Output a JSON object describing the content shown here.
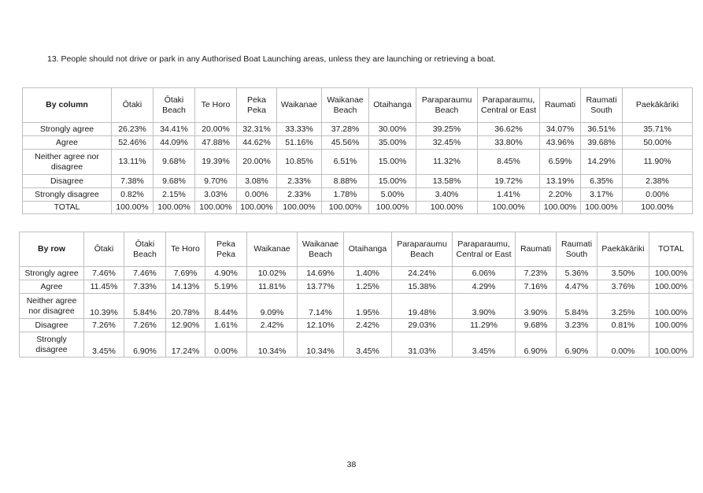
{
  "question": "13.  People should not drive or park in any Authorised Boat Launching areas, unless they are launching or retrieving a boat.",
  "by_column": {
    "corner": "By column",
    "headers": [
      "Ōtaki",
      "Ōtaki Beach",
      "Te Horo",
      "Peka Peka",
      "Waikanae",
      "Waikanae Beach",
      "Otaihanga",
      "Paraparaumu Beach",
      "Paraparaumu, Central or East",
      "Raumati",
      "Raumati South",
      "Paekākāriki"
    ],
    "rows": [
      {
        "label": "Strongly agree",
        "cells": [
          "26.23%",
          "34.41%",
          "20.00%",
          "32.31%",
          "33.33%",
          "37.28%",
          "30.00%",
          "39.25%",
          "36.62%",
          "34.07%",
          "36.51%",
          "35.71%"
        ]
      },
      {
        "label": "Agree",
        "cells": [
          "52.46%",
          "44.09%",
          "47.88%",
          "44.62%",
          "51.16%",
          "45.56%",
          "35.00%",
          "32.45%",
          "33.80%",
          "43.96%",
          "39.68%",
          "50.00%"
        ]
      },
      {
        "label": "Neither agree nor disagree",
        "cells": [
          "13.11%",
          "9.68%",
          "19.39%",
          "20.00%",
          "10.85%",
          "6.51%",
          "15.00%",
          "11.32%",
          "8.45%",
          "6.59%",
          "14.29%",
          "11.90%"
        ]
      },
      {
        "label": "Disagree",
        "cells": [
          "7.38%",
          "9.68%",
          "9.70%",
          "3.08%",
          "2.33%",
          "8.88%",
          "15.00%",
          "13.58%",
          "19.72%",
          "13.19%",
          "6.35%",
          "2.38%"
        ]
      },
      {
        "label": "Strongly disagree",
        "cells": [
          "0.82%",
          "2.15%",
          "3.03%",
          "0.00%",
          "2.33%",
          "1.78%",
          "5.00%",
          "3.40%",
          "1.41%",
          "2.20%",
          "3.17%",
          "0.00%"
        ]
      },
      {
        "label": "TOTAL",
        "cells": [
          "100.00%",
          "100.00%",
          "100.00%",
          "100.00%",
          "100.00%",
          "100.00%",
          "100.00%",
          "100.00%",
          "100.00%",
          "100.00%",
          "100.00%",
          "100.00%"
        ]
      }
    ]
  },
  "by_row": {
    "corner": "By row",
    "headers": [
      "Ōtaki",
      "Ōtaki Beach",
      "Te Horo",
      "Peka Peka",
      "Waikanae",
      "Waikanae Beach",
      "Otaihanga",
      "Paraparaumu Beach",
      "Paraparaumu, Central or East",
      "Raumati",
      "Raumati South",
      "Paekākāriki",
      "TOTAL"
    ],
    "rows": [
      {
        "label": "Strongly agree",
        "cells": [
          "7.46%",
          "7.46%",
          "7.69%",
          "4.90%",
          "10.02%",
          "14.69%",
          "1.40%",
          "24.24%",
          "6.06%",
          "7.23%",
          "5.36%",
          "3.50%",
          "100.00%"
        ]
      },
      {
        "label": "Agree",
        "cells": [
          "11.45%",
          "7.33%",
          "14.13%",
          "5.19%",
          "11.81%",
          "13.77%",
          "1.25%",
          "15.38%",
          "4.29%",
          "7.16%",
          "4.47%",
          "3.76%",
          "100.00%"
        ]
      },
      {
        "label": "Neither agree nor disagree",
        "cells": [
          "10.39%",
          "5.84%",
          "20.78%",
          "8.44%",
          "9.09%",
          "7.14%",
          "1.95%",
          "19.48%",
          "3.90%",
          "3.90%",
          "5.84%",
          "3.25%",
          "100.00%"
        ]
      },
      {
        "label": "Disagree",
        "cells": [
          "7.26%",
          "7.26%",
          "12.90%",
          "1.61%",
          "2.42%",
          "12.10%",
          "2.42%",
          "29.03%",
          "11.29%",
          "9.68%",
          "3.23%",
          "0.81%",
          "100.00%"
        ]
      },
      {
        "label": "Strongly disagree",
        "cells": [
          "3.45%",
          "6.90%",
          "17.24%",
          "0.00%",
          "10.34%",
          "10.34%",
          "3.45%",
          "31.03%",
          "3.45%",
          "6.90%",
          "6.90%",
          "0.00%",
          "100.00%"
        ]
      }
    ]
  },
  "page_number": "38"
}
